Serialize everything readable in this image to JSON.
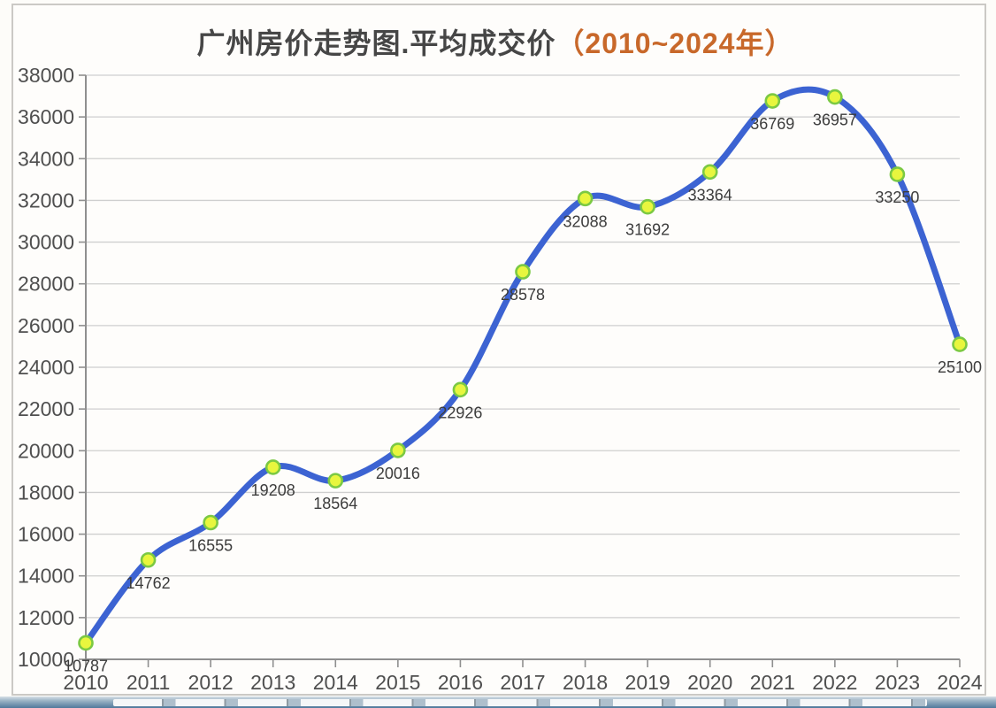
{
  "title": {
    "main": "广州房价走势图.平均成交价",
    "sub": "（2010~2024年）"
  },
  "colors": {
    "line": "#3c63d2",
    "marker_fill": "#e8f63e",
    "marker_stroke": "#7bc943",
    "grid": "#cfcfcf",
    "axis": "#8f8f8f",
    "title": "#464646",
    "subtitle": "#c8682a",
    "tick_label": "#4f4f4f",
    "data_label": "#3c3c3c",
    "panel_border": "#cbc9c5",
    "background": "#fdfcf9",
    "strip_blue": "#50799c"
  },
  "chart_data": {
    "type": "line",
    "title": "广州房价走势图.平均成交价（2010~2024年）",
    "xlabel": "",
    "ylabel": "",
    "categories": [
      "2010",
      "2011",
      "2012",
      "2013",
      "2014",
      "2015",
      "2016",
      "2017",
      "2018",
      "2019",
      "2020",
      "2021",
      "2022",
      "2023",
      "2024"
    ],
    "values": [
      10787,
      14762,
      16555,
      19208,
      18564,
      20016,
      22926,
      28578,
      32088,
      31692,
      33364,
      36769,
      36957,
      33250,
      25100
    ],
    "data_labels": [
      "10787",
      "14762",
      "16555",
      "19208",
      "18564",
      "20016",
      "22926",
      "28578",
      "32088",
      "31692",
      "33364",
      "36769",
      "36957",
      "33250",
      "25100"
    ],
    "ylim": [
      10000,
      38000
    ],
    "yticks": [
      10000,
      12000,
      14000,
      16000,
      18000,
      20000,
      22000,
      24000,
      26000,
      28000,
      30000,
      32000,
      34000,
      36000,
      38000
    ],
    "ytick_labels": [
      "10000",
      "12000",
      "14000",
      "16000",
      "18000",
      "20000",
      "22000",
      "24000",
      "26000",
      "28000",
      "30000",
      "32000",
      "34000",
      "36000",
      "38000"
    ],
    "grid": true,
    "legend_position": "none",
    "smooth": true
  }
}
